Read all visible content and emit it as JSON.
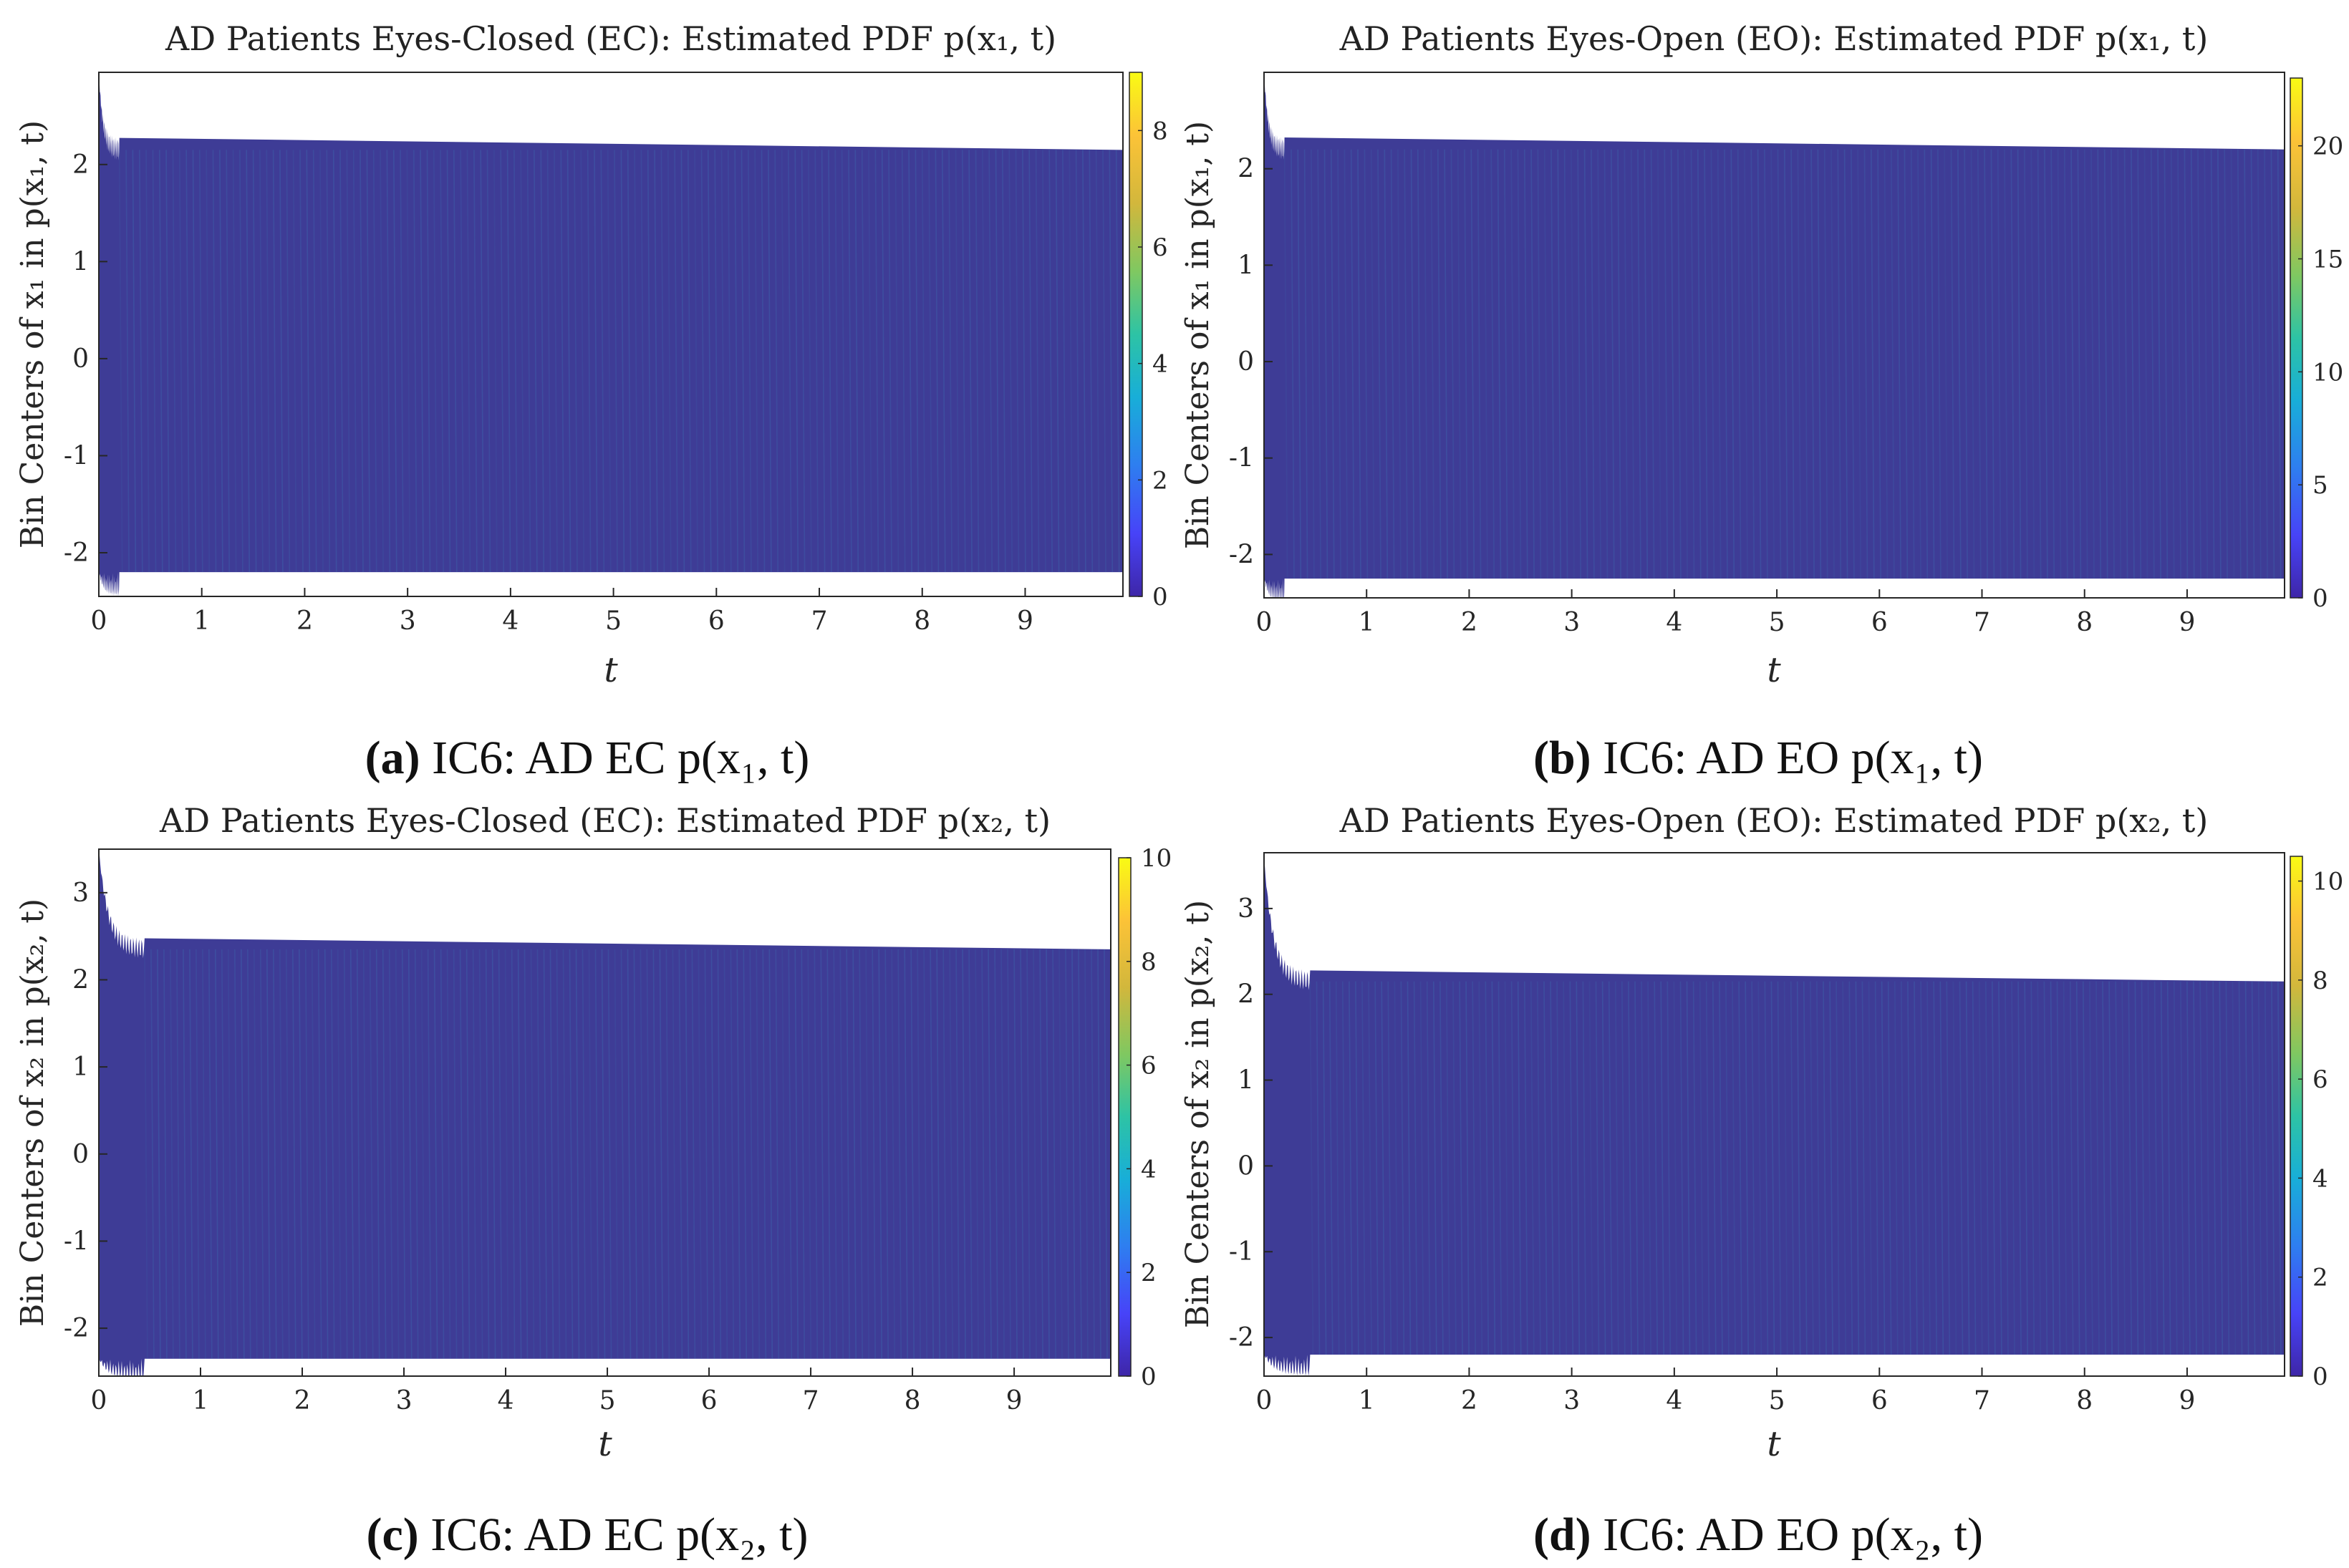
{
  "chart_data": [
    {
      "id": "a",
      "type": "heatmap",
      "title": "AD Patients Eyes-Closed (EC): Estimated PDF p(x₁, t)",
      "xlabel": "t",
      "ylabel": "Bin Centers of x₁ in p(x₁, t)",
      "caption_letter": "(a)",
      "caption_text": "IC6: AD EC p(x₁, t)",
      "xlim": [
        0,
        9.95
      ],
      "ylim": [
        -2.45,
        2.95
      ],
      "xticks": [
        "0",
        "1",
        "2",
        "3",
        "4",
        "5",
        "6",
        "7",
        "8",
        "9"
      ],
      "yticks": [
        "-2",
        "-1",
        "0",
        "1",
        "2"
      ],
      "band": {
        "lower": -2.2,
        "upper": 2.15,
        "initial_peak": 2.95,
        "settle_time": 0.2
      },
      "colorbar": {
        "range": [
          0,
          9
        ],
        "ticks": [
          "0",
          "2",
          "4",
          "6",
          "8"
        ]
      }
    },
    {
      "id": "b",
      "type": "heatmap",
      "title": "AD Patients Eyes-Open (EO): Estimated PDF p(x₁, t)",
      "xlabel": "t",
      "ylabel": "Bin Centers of x₁ in p(x₁, t)",
      "caption_letter": "(b)",
      "caption_text": "IC6: AD EO p(x₁, t)",
      "xlim": [
        0,
        9.95
      ],
      "ylim": [
        -2.45,
        3.0
      ],
      "xticks": [
        "0",
        "1",
        "2",
        "3",
        "4",
        "5",
        "6",
        "7",
        "8",
        "9"
      ],
      "yticks": [
        "-2",
        "-1",
        "0",
        "1",
        "2"
      ],
      "band": {
        "lower": -2.25,
        "upper": 2.2,
        "initial_peak": 3.0,
        "settle_time": 0.2
      },
      "colorbar": {
        "range": [
          0,
          23
        ],
        "ticks": [
          "0",
          "5",
          "10",
          "15",
          "20"
        ]
      }
    },
    {
      "id": "c",
      "type": "heatmap",
      "title": "AD Patients Eyes-Closed (EC): Estimated PDF p(x₂, t)",
      "xlabel": "t",
      "ylabel": "Bin Centers of x₂ in p(x₂, t)",
      "caption_letter": "(c)",
      "caption_text": "IC6: AD EC p(x₂, t)",
      "xlim": [
        0,
        9.95
      ],
      "ylim": [
        -2.55,
        3.5
      ],
      "xticks": [
        "0",
        "1",
        "2",
        "3",
        "4",
        "5",
        "6",
        "7",
        "8",
        "9"
      ],
      "yticks": [
        "-2",
        "-1",
        "0",
        "1",
        "2",
        "3"
      ],
      "band": {
        "lower": -2.35,
        "upper": 2.35,
        "initial_peak": 3.5,
        "settle_time": 0.45
      },
      "colorbar": {
        "range": [
          0,
          10
        ],
        "ticks": [
          "0",
          "2",
          "4",
          "6",
          "8",
          "10"
        ]
      }
    },
    {
      "id": "d",
      "type": "heatmap",
      "title": "AD Patients Eyes-Open (EO): Estimated PDF p(x₂, t)",
      "xlabel": "t",
      "ylabel": "Bin Centers of x₂ in p(x₂, t)",
      "caption_letter": "(d)",
      "caption_text": "IC6: AD EO p(x₂, t)",
      "xlim": [
        0,
        9.95
      ],
      "ylim": [
        -2.45,
        3.65
      ],
      "xticks": [
        "0",
        "1",
        "2",
        "3",
        "4",
        "5",
        "6",
        "7",
        "8",
        "9"
      ],
      "yticks": [
        "-2",
        "-1",
        "0",
        "1",
        "2",
        "3"
      ],
      "band": {
        "lower": -2.2,
        "upper": 2.15,
        "initial_peak": 3.6,
        "settle_time": 0.45
      },
      "colorbar": {
        "range": [
          0,
          10.5
        ],
        "ticks": [
          "0",
          "2",
          "4",
          "6",
          "8",
          "10"
        ]
      }
    }
  ],
  "colors": {
    "band": "#3e3c96",
    "streak": "#3a8fc4",
    "axis": "#262626",
    "colormap": [
      "#3e26a8",
      "#4743f8",
      "#2e7ef0",
      "#18aed8",
      "#2dc3a5",
      "#7fc861",
      "#d2b73c",
      "#fcc337",
      "#f9fb14"
    ]
  }
}
